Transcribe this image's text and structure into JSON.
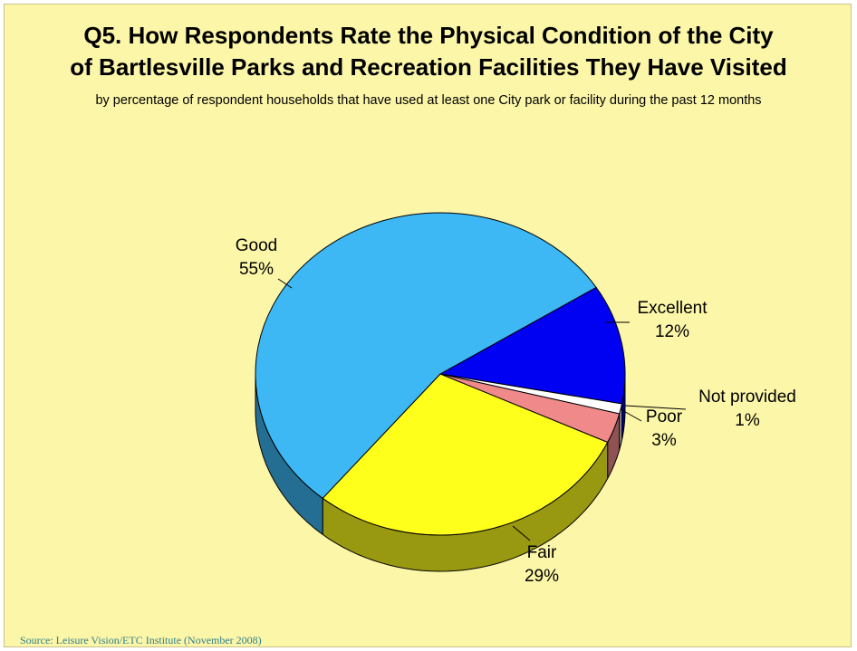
{
  "slide": {
    "title_line1": "Q5. How Respondents Rate the Physical Condition of the City",
    "title_line2": "of Bartlesville Parks and Recreation Facilities They Have Visited",
    "subtitle": "by percentage of respondent households that have used at least one City park or facility during the past 12 months",
    "source": "Source:  Leisure Vision/ETC Institute (November 2008)",
    "background_color": "#fcf6a8"
  },
  "chart_data": {
    "type": "pie",
    "style": "3d",
    "slices": [
      {
        "label": "Excellent",
        "value": 12,
        "value_label": "12%",
        "color": "#0000f2"
      },
      {
        "label": "Not provided",
        "value": 1,
        "value_label": "1%",
        "color": "#ffffff"
      },
      {
        "label": "Poor",
        "value": 3,
        "value_label": "3%",
        "color": "#f08a8a"
      },
      {
        "label": "Fair",
        "value": 29,
        "value_label": "29%",
        "color": "#ffff1c"
      },
      {
        "label": "Good",
        "value": 55,
        "value_label": "55%",
        "color": "#3db8f5"
      }
    ]
  }
}
